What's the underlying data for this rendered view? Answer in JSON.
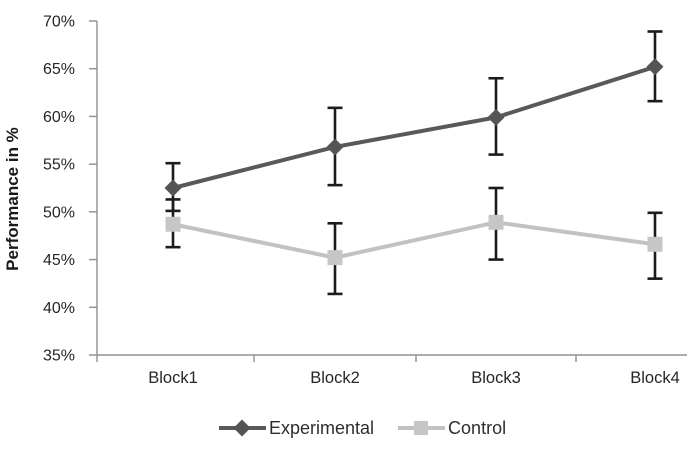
{
  "chart_data": {
    "type": "line",
    "title": "",
    "xlabel": "",
    "ylabel": "Performance in %",
    "categories": [
      "Block1",
      "Block2",
      "Block3",
      "Block4"
    ],
    "y_axis": {
      "min": 35,
      "max": 70,
      "step": 5
    },
    "y_tick_labels": [
      "35%",
      "40%",
      "45%",
      "50%",
      "55%",
      "60%",
      "65%",
      "70%"
    ],
    "grid": false,
    "legend_position": "bottom",
    "series": [
      {
        "name": "Experimental",
        "marker": "diamond",
        "color": "#595959",
        "marker_color": "#545454",
        "values": [
          52.5,
          56.8,
          59.9,
          65.2
        ],
        "error_low": [
          50.1,
          52.8,
          56.0,
          61.6
        ],
        "error_high": [
          55.1,
          60.9,
          64.0,
          68.9
        ]
      },
      {
        "name": "Control",
        "marker": "square",
        "color": "#c2c2c2",
        "marker_color": "#c6c6c6",
        "values": [
          48.7,
          45.2,
          48.9,
          46.6
        ],
        "error_low": [
          46.3,
          41.4,
          45.0,
          43.0
        ],
        "error_high": [
          51.3,
          48.8,
          52.5,
          49.9
        ]
      }
    ],
    "error_bar_color": "#1c1c1c",
    "axis_color": "#8f8f8f",
    "text_color": "#262626"
  }
}
